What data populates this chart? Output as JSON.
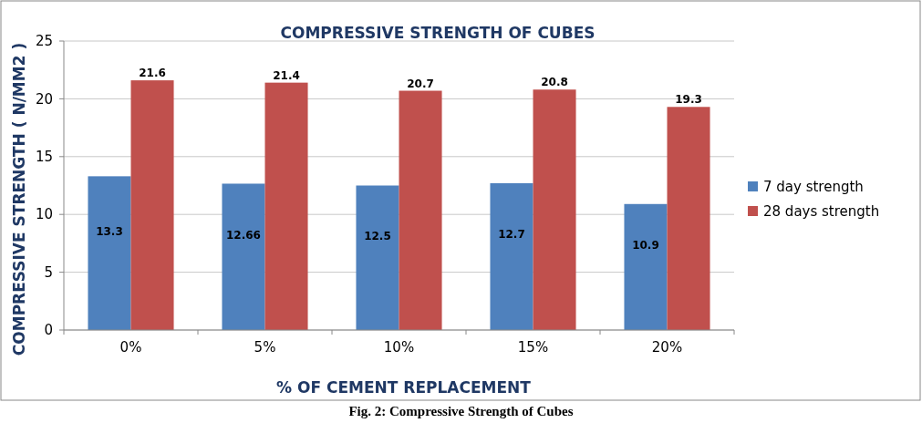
{
  "chart_data": {
    "type": "bar",
    "title": "COMPRESSIVE STRENGTH OF CUBES",
    "xlabel": "% OF CEMENT REPLACEMENT",
    "ylabel": "COMPRESSIVE STRENGTH ( N/MM2 )",
    "categories": [
      "0%",
      "5%",
      "10%",
      "15%",
      "20%"
    ],
    "series": [
      {
        "name": "7 day strength",
        "color": "#4f81bd",
        "values": [
          13.3,
          12.66,
          12.5,
          12.7,
          10.9
        ]
      },
      {
        "name": "28 days strength",
        "color": "#c0504d",
        "values": [
          21.6,
          21.4,
          20.7,
          20.8,
          19.3
        ]
      }
    ],
    "ylim": [
      0,
      25
    ],
    "yticks": [
      0,
      5,
      10,
      15,
      20,
      25
    ],
    "grid": "y",
    "legend": "right",
    "data_labels": true,
    "annotations": [
      "Fig. 2: Compressive Strength of Cubes"
    ]
  }
}
